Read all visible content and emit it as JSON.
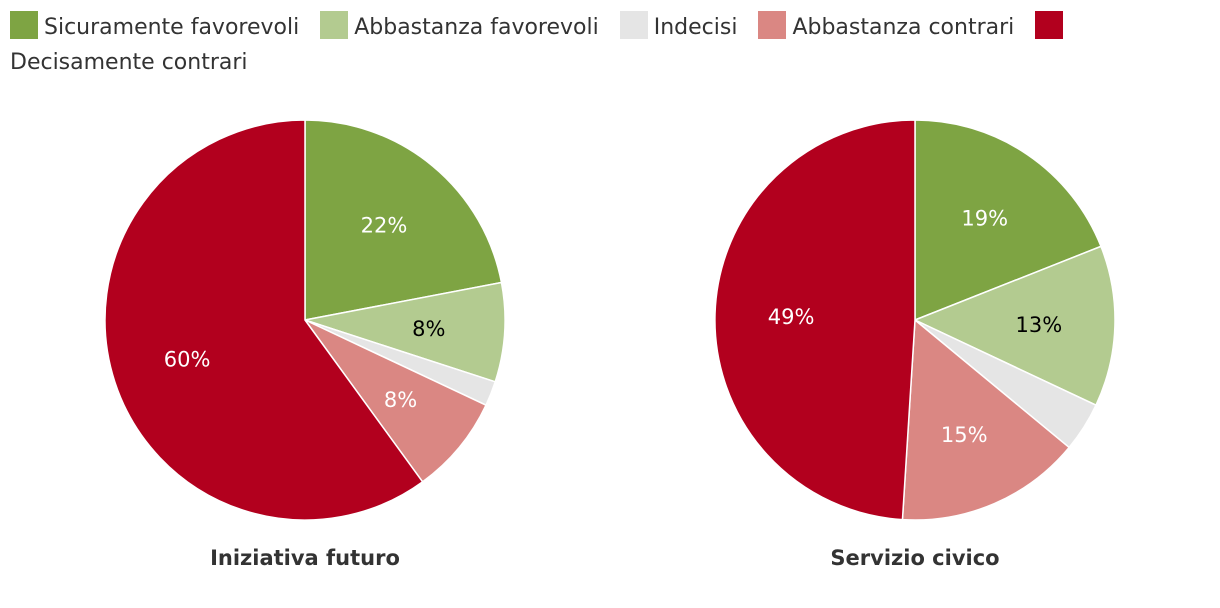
{
  "chart_data": [
    {
      "type": "pie",
      "title": "Iniziativa futuro",
      "labels": [
        "Sicuramente favorevoli",
        "Abbastanza favorevoli",
        "Indecisi",
        "Abbastanza contrari",
        "Decisamente contrari"
      ],
      "values": [
        22,
        8,
        2,
        8,
        60
      ],
      "data_labels": [
        "22%",
        "8%",
        "",
        "8%",
        "60%"
      ]
    },
    {
      "type": "pie",
      "title": "Servizio civico",
      "labels": [
        "Sicuramente favorevoli",
        "Abbastanza favorevoli",
        "Indecisi",
        "Abbastanza contrari",
        "Decisamente contrari"
      ],
      "values": [
        19,
        13,
        4,
        15,
        49
      ],
      "data_labels": [
        "19%",
        "13%",
        "",
        "15%",
        "49%"
      ]
    }
  ],
  "legend": {
    "position": "top",
    "items": [
      {
        "label": "Sicuramente favorevoli",
        "color": "#7ea443"
      },
      {
        "label": "Abbastanza favorevoli",
        "color": "#b3cb90"
      },
      {
        "label": "Indecisi",
        "color": "#e5e5e5"
      },
      {
        "label": "Abbastanza contrari",
        "color": "#da8783"
      },
      {
        "label": "Decisamente contrari",
        "color": "#b2001e"
      }
    ]
  },
  "label_colors": [
    "#ffffff",
    "#000000",
    "#000000",
    "#ffffff",
    "#ffffff"
  ]
}
